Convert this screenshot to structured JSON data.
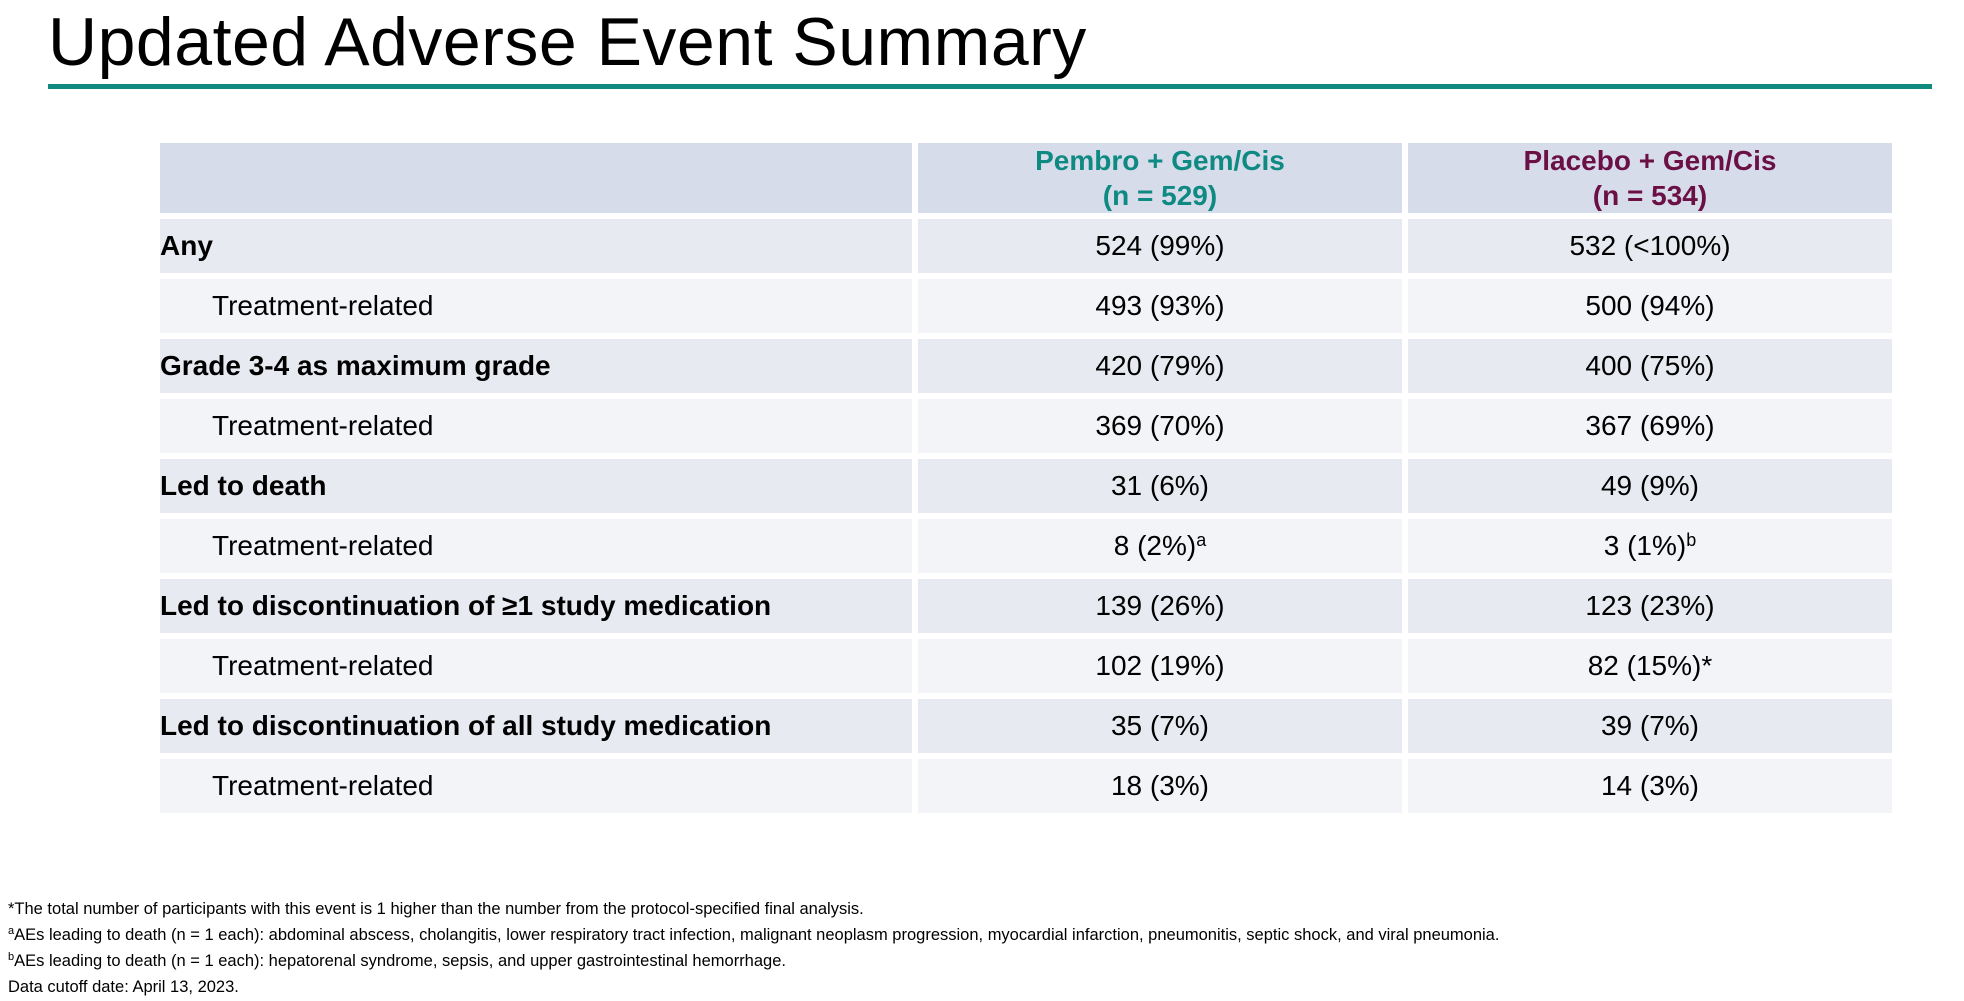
{
  "header": {
    "title": "Updated Adverse Event Summary",
    "accent_color": "#10897f"
  },
  "table": {
    "columns": [
      {
        "line1": "Pembro + Gem/Cis",
        "line2": "(n = 529)",
        "color": "#0e8a82"
      },
      {
        "line1": "Placebo + Gem/Cis",
        "line2": "(n = 534)",
        "color": "#6b1045"
      }
    ],
    "rows": [
      {
        "label": "Any",
        "pembro": "524 (99%)",
        "pembro_sup": "",
        "placebo": "532 (<100%)",
        "placebo_sup": "",
        "level": "main"
      },
      {
        "label": "Treatment-related",
        "pembro": "493 (93%)",
        "pembro_sup": "",
        "placebo": "500 (94%)",
        "placebo_sup": "",
        "level": "sub"
      },
      {
        "label": "Grade 3-4 as maximum grade",
        "pembro": "420 (79%)",
        "pembro_sup": "",
        "placebo": "400 (75%)",
        "placebo_sup": "",
        "level": "main"
      },
      {
        "label": "Treatment-related",
        "pembro": "369 (70%)",
        "pembro_sup": "",
        "placebo": "367 (69%)",
        "placebo_sup": "",
        "level": "sub"
      },
      {
        "label": "Led to death",
        "pembro": "31 (6%)",
        "pembro_sup": "",
        "placebo": "49 (9%)",
        "placebo_sup": "",
        "level": "main"
      },
      {
        "label": "Treatment-related",
        "pembro": "8 (2%)",
        "pembro_sup": "a",
        "placebo": "3 (1%)",
        "placebo_sup": "b",
        "level": "sub"
      },
      {
        "label": "Led to discontinuation of ≥1 study medication",
        "pembro": "139 (26%)",
        "pembro_sup": "",
        "placebo": "123 (23%)",
        "placebo_sup": "",
        "level": "main"
      },
      {
        "label": "Treatment-related",
        "pembro": "102 (19%)",
        "pembro_sup": "",
        "placebo": "82 (15%)*",
        "placebo_sup": "",
        "level": "sub"
      },
      {
        "label": "Led to discontinuation of all study medication",
        "pembro": "35 (7%)",
        "pembro_sup": "",
        "placebo": "39 (7%)",
        "placebo_sup": "",
        "level": "main"
      },
      {
        "label": "Treatment-related",
        "pembro": "18 (3%)",
        "pembro_sup": "",
        "placebo": "14 (3%)",
        "placebo_sup": "",
        "level": "sub"
      }
    ]
  },
  "footnotes": [
    {
      "marker": "",
      "text": "*The total number of participants with this event is 1 higher than the number from the protocol-specified final analysis."
    },
    {
      "marker": "a",
      "text": "AEs leading to death (n = 1 each): abdominal abscess, cholangitis, lower respiratory tract infection, malignant neoplasm progression, myocardial infarction, pneumonitis, septic shock, and viral pneumonia."
    },
    {
      "marker": "b",
      "text": "AEs leading to death (n = 1 each): hepatorenal syndrome, sepsis, and upper gastrointestinal hemorrhage."
    },
    {
      "marker": "",
      "text": "Data cutoff date: April 13, 2023."
    }
  ]
}
